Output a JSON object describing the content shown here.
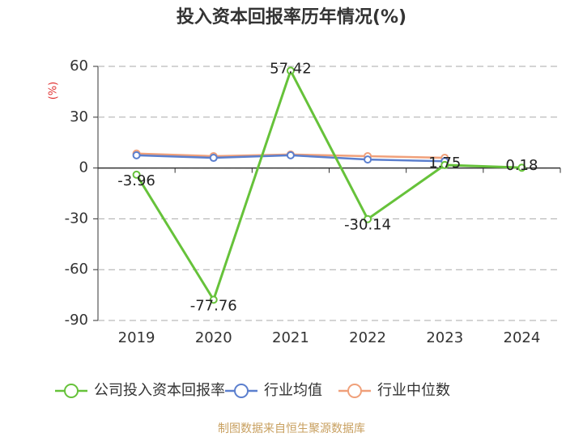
{
  "chart_data": {
    "type": "line",
    "title": "投入资本回报率历年情况(%)",
    "y_label": "(%)",
    "source": "制图数据来自恒生聚源数据库",
    "categories": [
      "2019",
      "2020",
      "2021",
      "2022",
      "2023",
      "2024"
    ],
    "series": [
      {
        "name": "公司投入资本回报率",
        "color": "#66c23a",
        "values": [
          -3.96,
          -77.76,
          57.42,
          -30.14,
          1.75,
          0.18
        ]
      },
      {
        "name": "行业均值",
        "color": "#5b7fce",
        "values": [
          7.5,
          6,
          7.5,
          5,
          4,
          null
        ]
      },
      {
        "name": "行业中位数",
        "color": "#f0a07a",
        "values": [
          8.5,
          7,
          8,
          7,
          6,
          null
        ]
      }
    ],
    "ylim": [
      -90,
      60
    ],
    "yticks": [
      -90,
      -60,
      -30,
      0,
      30,
      60
    ],
    "grid": true
  }
}
